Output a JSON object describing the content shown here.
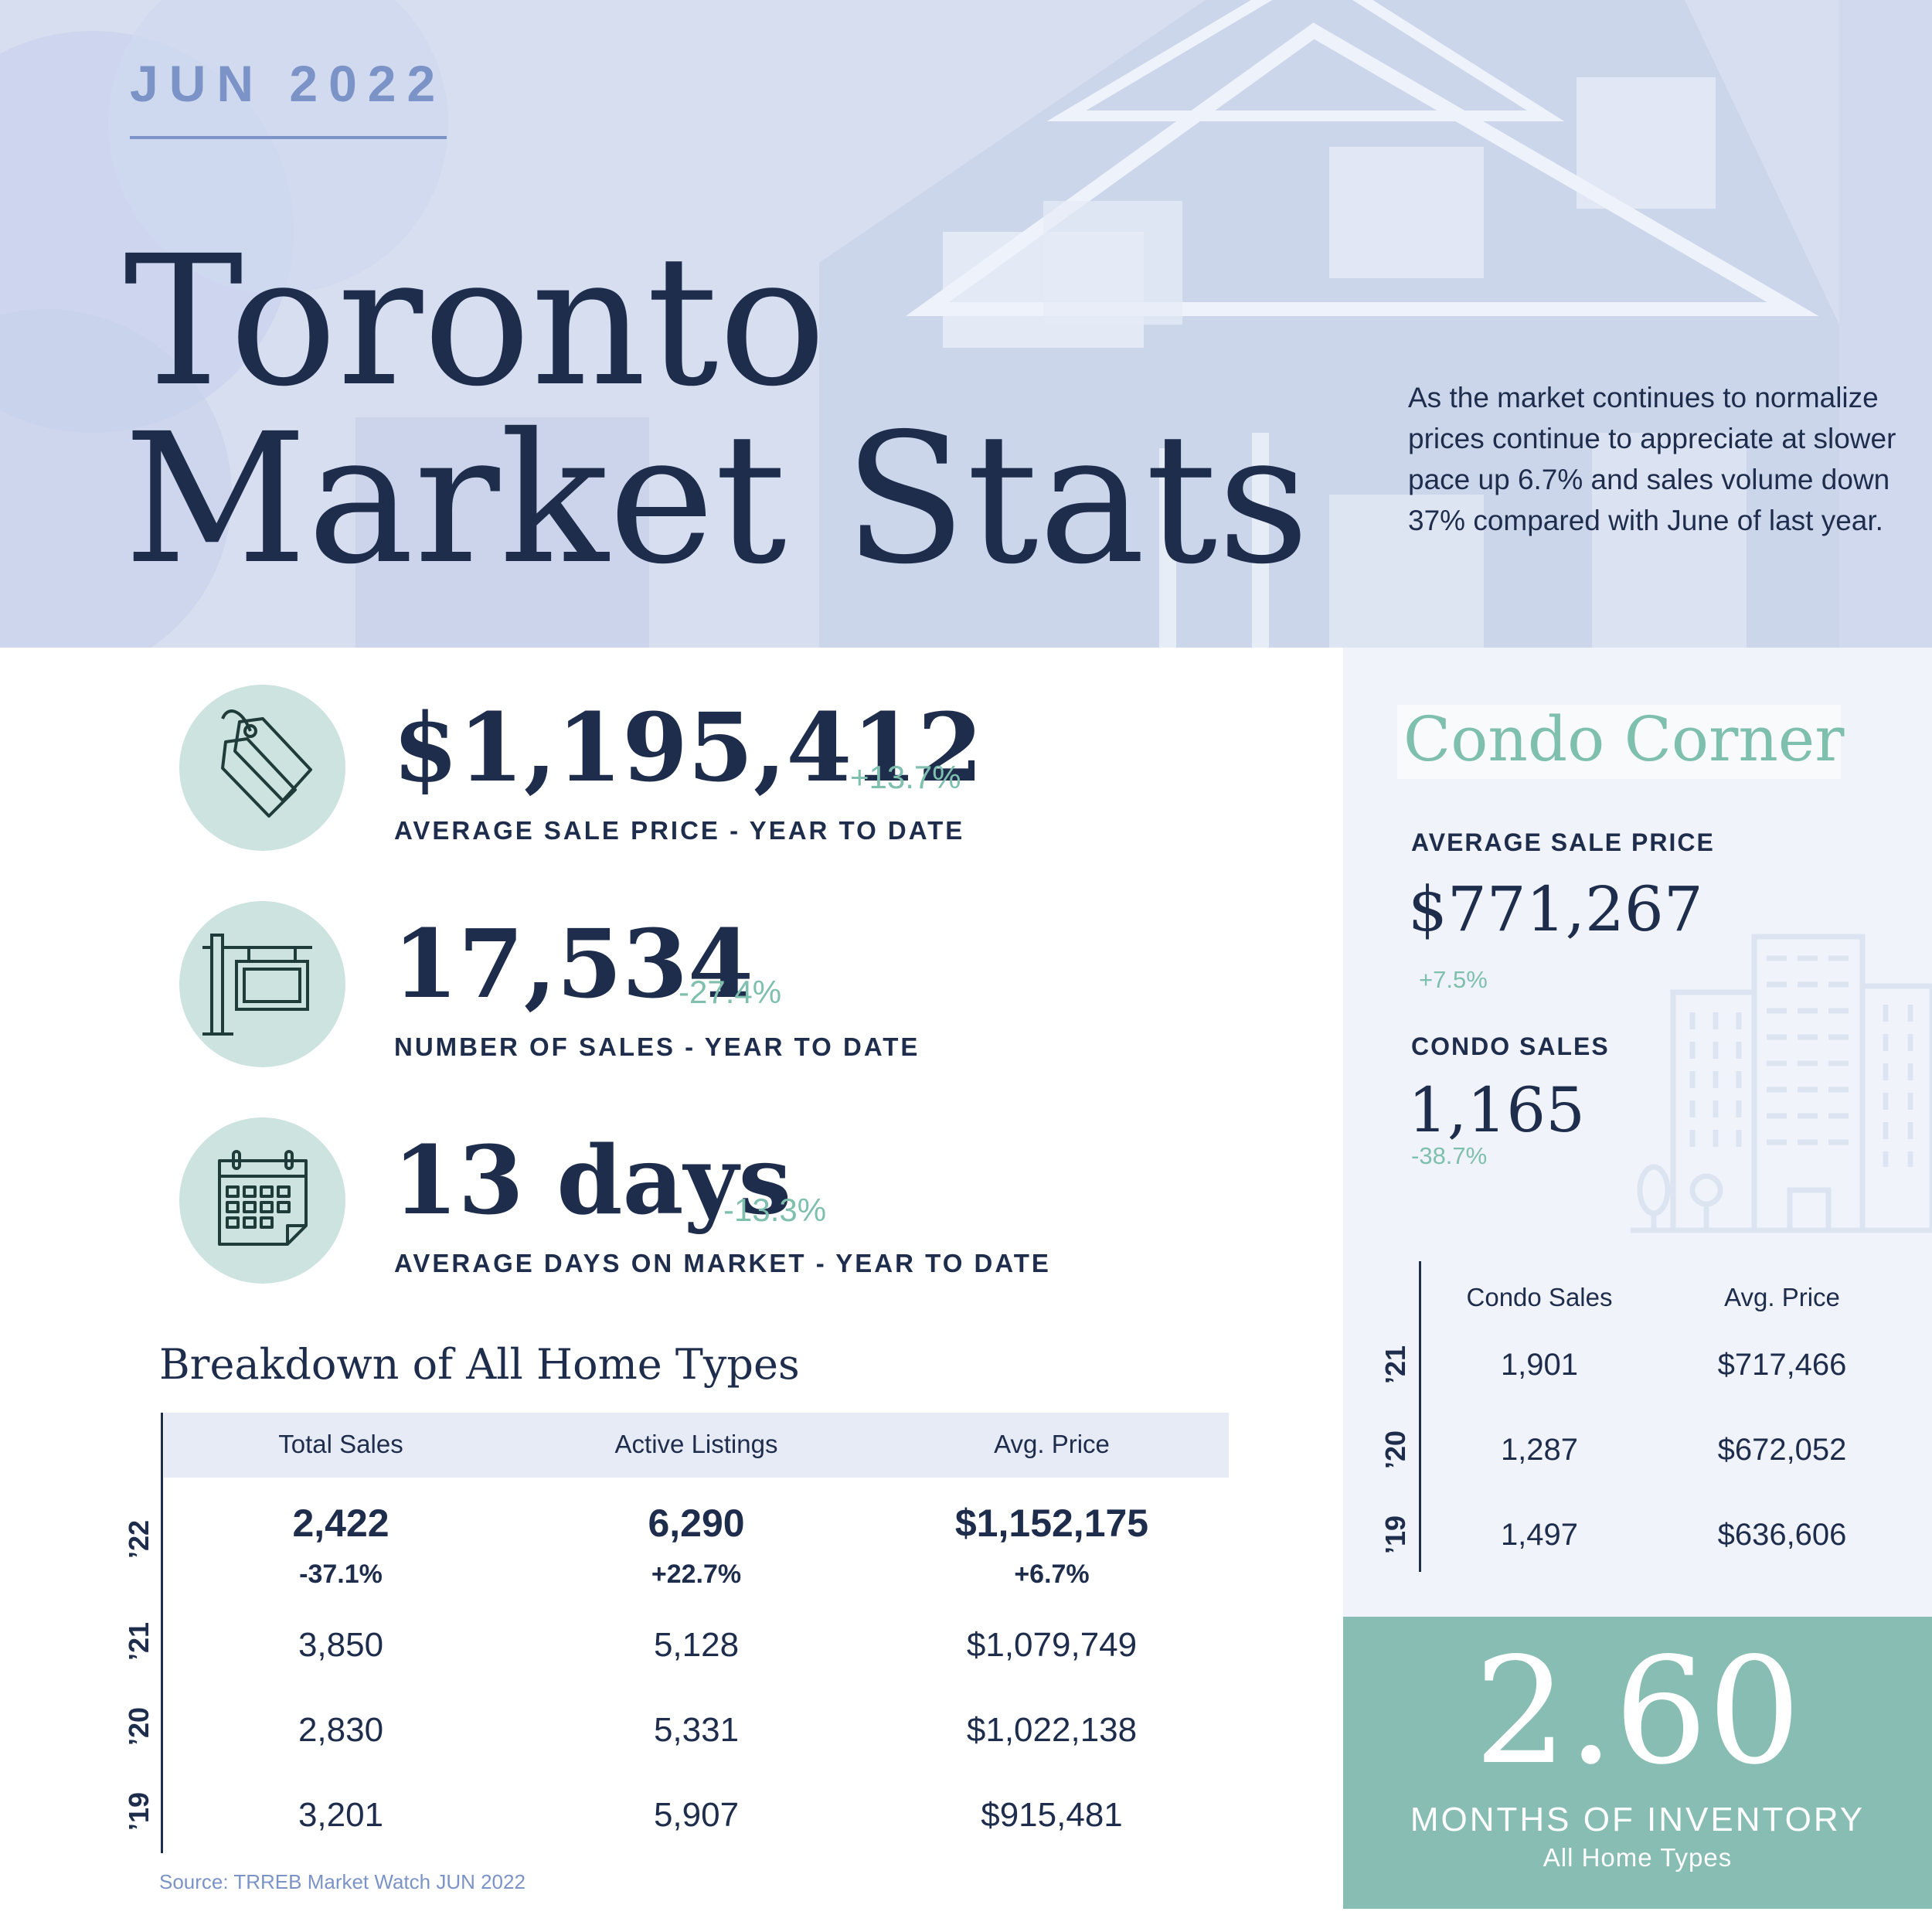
{
  "header": {
    "date": "JUN 2022",
    "title_line1": "Toronto",
    "title_line2": "Market Stats",
    "intro": "As the market continues to normalize prices continue to appreciate at slower pace up 6.7% and sales volume down 37% compared with June of last year."
  },
  "stats": [
    {
      "icon": "price-tag-icon",
      "value": "$1,195,412",
      "change": "+13.7%",
      "label": "AVERAGE SALE PRICE - YEAR TO DATE"
    },
    {
      "icon": "sale-sign-icon",
      "value": "17,534",
      "change": "-27.4%",
      "label": "NUMBER OF SALES - YEAR TO DATE"
    },
    {
      "icon": "calendar-icon",
      "value": "13 days",
      "change": "-13.3%",
      "label": "AVERAGE DAYS ON MARKET - YEAR TO DATE"
    }
  ],
  "breakdown": {
    "title": "Breakdown of All Home Types",
    "columns": [
      "Total Sales",
      "Active Listings",
      "Avg. Price"
    ],
    "rows": [
      {
        "year": "’22",
        "values": [
          "2,422",
          "6,290",
          "$1,152,175"
        ],
        "changes": [
          "-37.1%",
          "+22.7%",
          "+6.7%"
        ]
      },
      {
        "year": "’21",
        "values": [
          "3,850",
          "5,128",
          "$1,079,749"
        ]
      },
      {
        "year": "’20",
        "values": [
          "2,830",
          "5,331",
          "$1,022,138"
        ]
      },
      {
        "year": "’19",
        "values": [
          "3,201",
          "5,907",
          "$915,481"
        ]
      }
    ],
    "source": "Source: TRREB Market Watch JUN 2022"
  },
  "condo": {
    "title": "Condo Corner",
    "avg_label": "AVERAGE SALE PRICE",
    "avg_value": "$771,267",
    "avg_change": "+7.5%",
    "sales_label": "CONDO SALES",
    "sales_value": "1,165",
    "sales_change": "-38.7%",
    "columns": [
      "Condo Sales",
      "Avg. Price"
    ],
    "rows": [
      {
        "year": "’21",
        "values": [
          "1,901",
          "$717,466"
        ]
      },
      {
        "year": "’20",
        "values": [
          "1,287",
          "$672,052"
        ]
      },
      {
        "year": "’19",
        "values": [
          "1,497",
          "$636,606"
        ]
      }
    ]
  },
  "inventory": {
    "value": "2.60",
    "label": "MONTHS OF INVENTORY",
    "sublabel": "All Home Types"
  },
  "colors": {
    "navy": "#1f2d4d",
    "periwinkle": "#7b93c6",
    "hero_bg": "#d6def0",
    "mint": "#7fbfae",
    "mint_circle": "#cde3df",
    "teal_box": "#87bdb3",
    "condo_panel": "#f0f3f9"
  }
}
